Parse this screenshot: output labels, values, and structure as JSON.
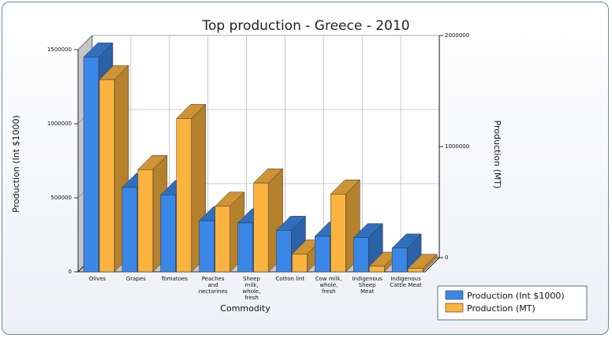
{
  "chart_data": {
    "type": "bar",
    "title": "Top production - Greece - 2010",
    "xlabel": "Commodity",
    "ylabel_left": "Production (Int $1000)",
    "ylabel_right": "Production (MT)",
    "categories": [
      [
        "Olives"
      ],
      [
        "Grapes"
      ],
      [
        "Tomatoes"
      ],
      [
        "Peaches",
        "and",
        "nectarines"
      ],
      [
        "Sheep",
        "milk,",
        "whole,",
        "fresh"
      ],
      [
        "Cotton lint"
      ],
      [
        "Cow milk,",
        "whole,",
        "fresh"
      ],
      [
        "Indigenous",
        "Sheep",
        "Meat"
      ],
      [
        "Indigenous",
        "Cattle Meat"
      ]
    ],
    "series": [
      {
        "name": "Production (Int $1000)",
        "axis": "left",
        "color": "#3b87e8",
        "values": [
          1450000,
          570000,
          520000,
          345000,
          330000,
          280000,
          240000,
          230000,
          160000
        ]
      },
      {
        "name": "Production (MT)",
        "axis": "right",
        "color": "#fbb33f",
        "values": [
          1730000,
          920000,
          1380000,
          590000,
          800000,
          160000,
          700000,
          50000,
          30000
        ]
      }
    ],
    "ylim_left": [
      0,
      1500000
    ],
    "ylim_right": [
      0,
      2000000
    ],
    "yticks_left": [
      "0",
      "500000",
      "1000000",
      "1500000"
    ],
    "yticks_right": [
      "0",
      "1000000",
      "2000000"
    ],
    "grid": true,
    "legend": "bottom-right"
  }
}
